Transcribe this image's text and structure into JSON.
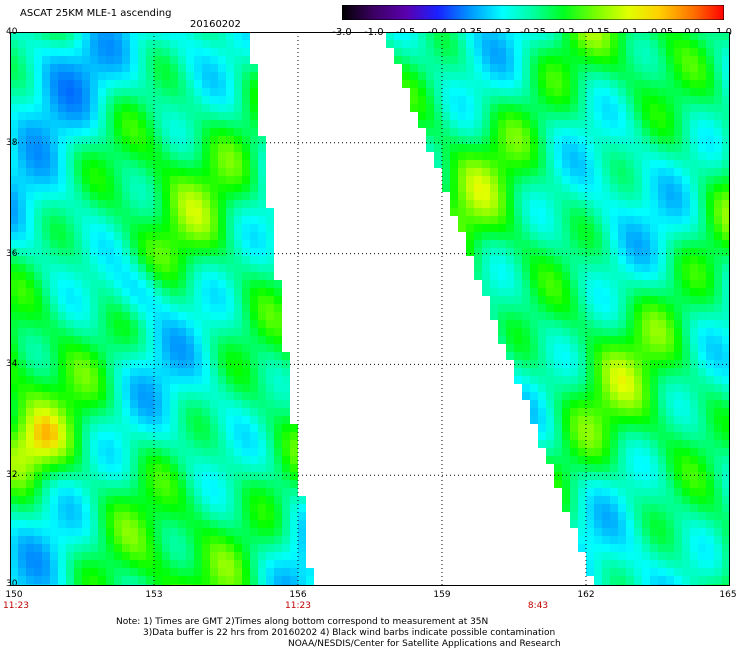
{
  "header": {
    "title": "ASCAT 25KM MLE-1 ascending",
    "date": "20160202"
  },
  "colorbar": {
    "labels": [
      "-3.0",
      "-1.0",
      "-0.5",
      "-0.4",
      "-0.35",
      "-0.3",
      "-0.25",
      "-0.2",
      "-0.15",
      "-0.1",
      "-0.05",
      "0.0",
      "1.0"
    ],
    "colors": [
      "#000000",
      "#5a007a",
      "#2a00c8",
      "#0050ff",
      "#00a0ff",
      "#00ffff",
      "#00ff80",
      "#00ff00",
      "#80ff00",
      "#ffff00",
      "#ff9000",
      "#ff2000"
    ]
  },
  "axes": {
    "lon_labels": [
      "150",
      "153",
      "156",
      "159",
      "162",
      "165"
    ],
    "lat_labels": [
      "40",
      "38",
      "36",
      "34",
      "32",
      "30"
    ]
  },
  "time_labels": [
    {
      "text": "11:23",
      "lon": 150
    },
    {
      "text": "11:23",
      "lon": 156
    },
    {
      "text": "8:43",
      "lon": 161
    }
  ],
  "notes": {
    "line1": "Note: 1) Times are GMT 2)Times along bottom correspond to measurement at 35N",
    "line2": "3)Data buffer is 22 hrs from 20160202 4) Black wind barbs indicate possible contamination",
    "line3": "NOAA/NESDIS/Center for Satellite Applications and Research"
  }
}
